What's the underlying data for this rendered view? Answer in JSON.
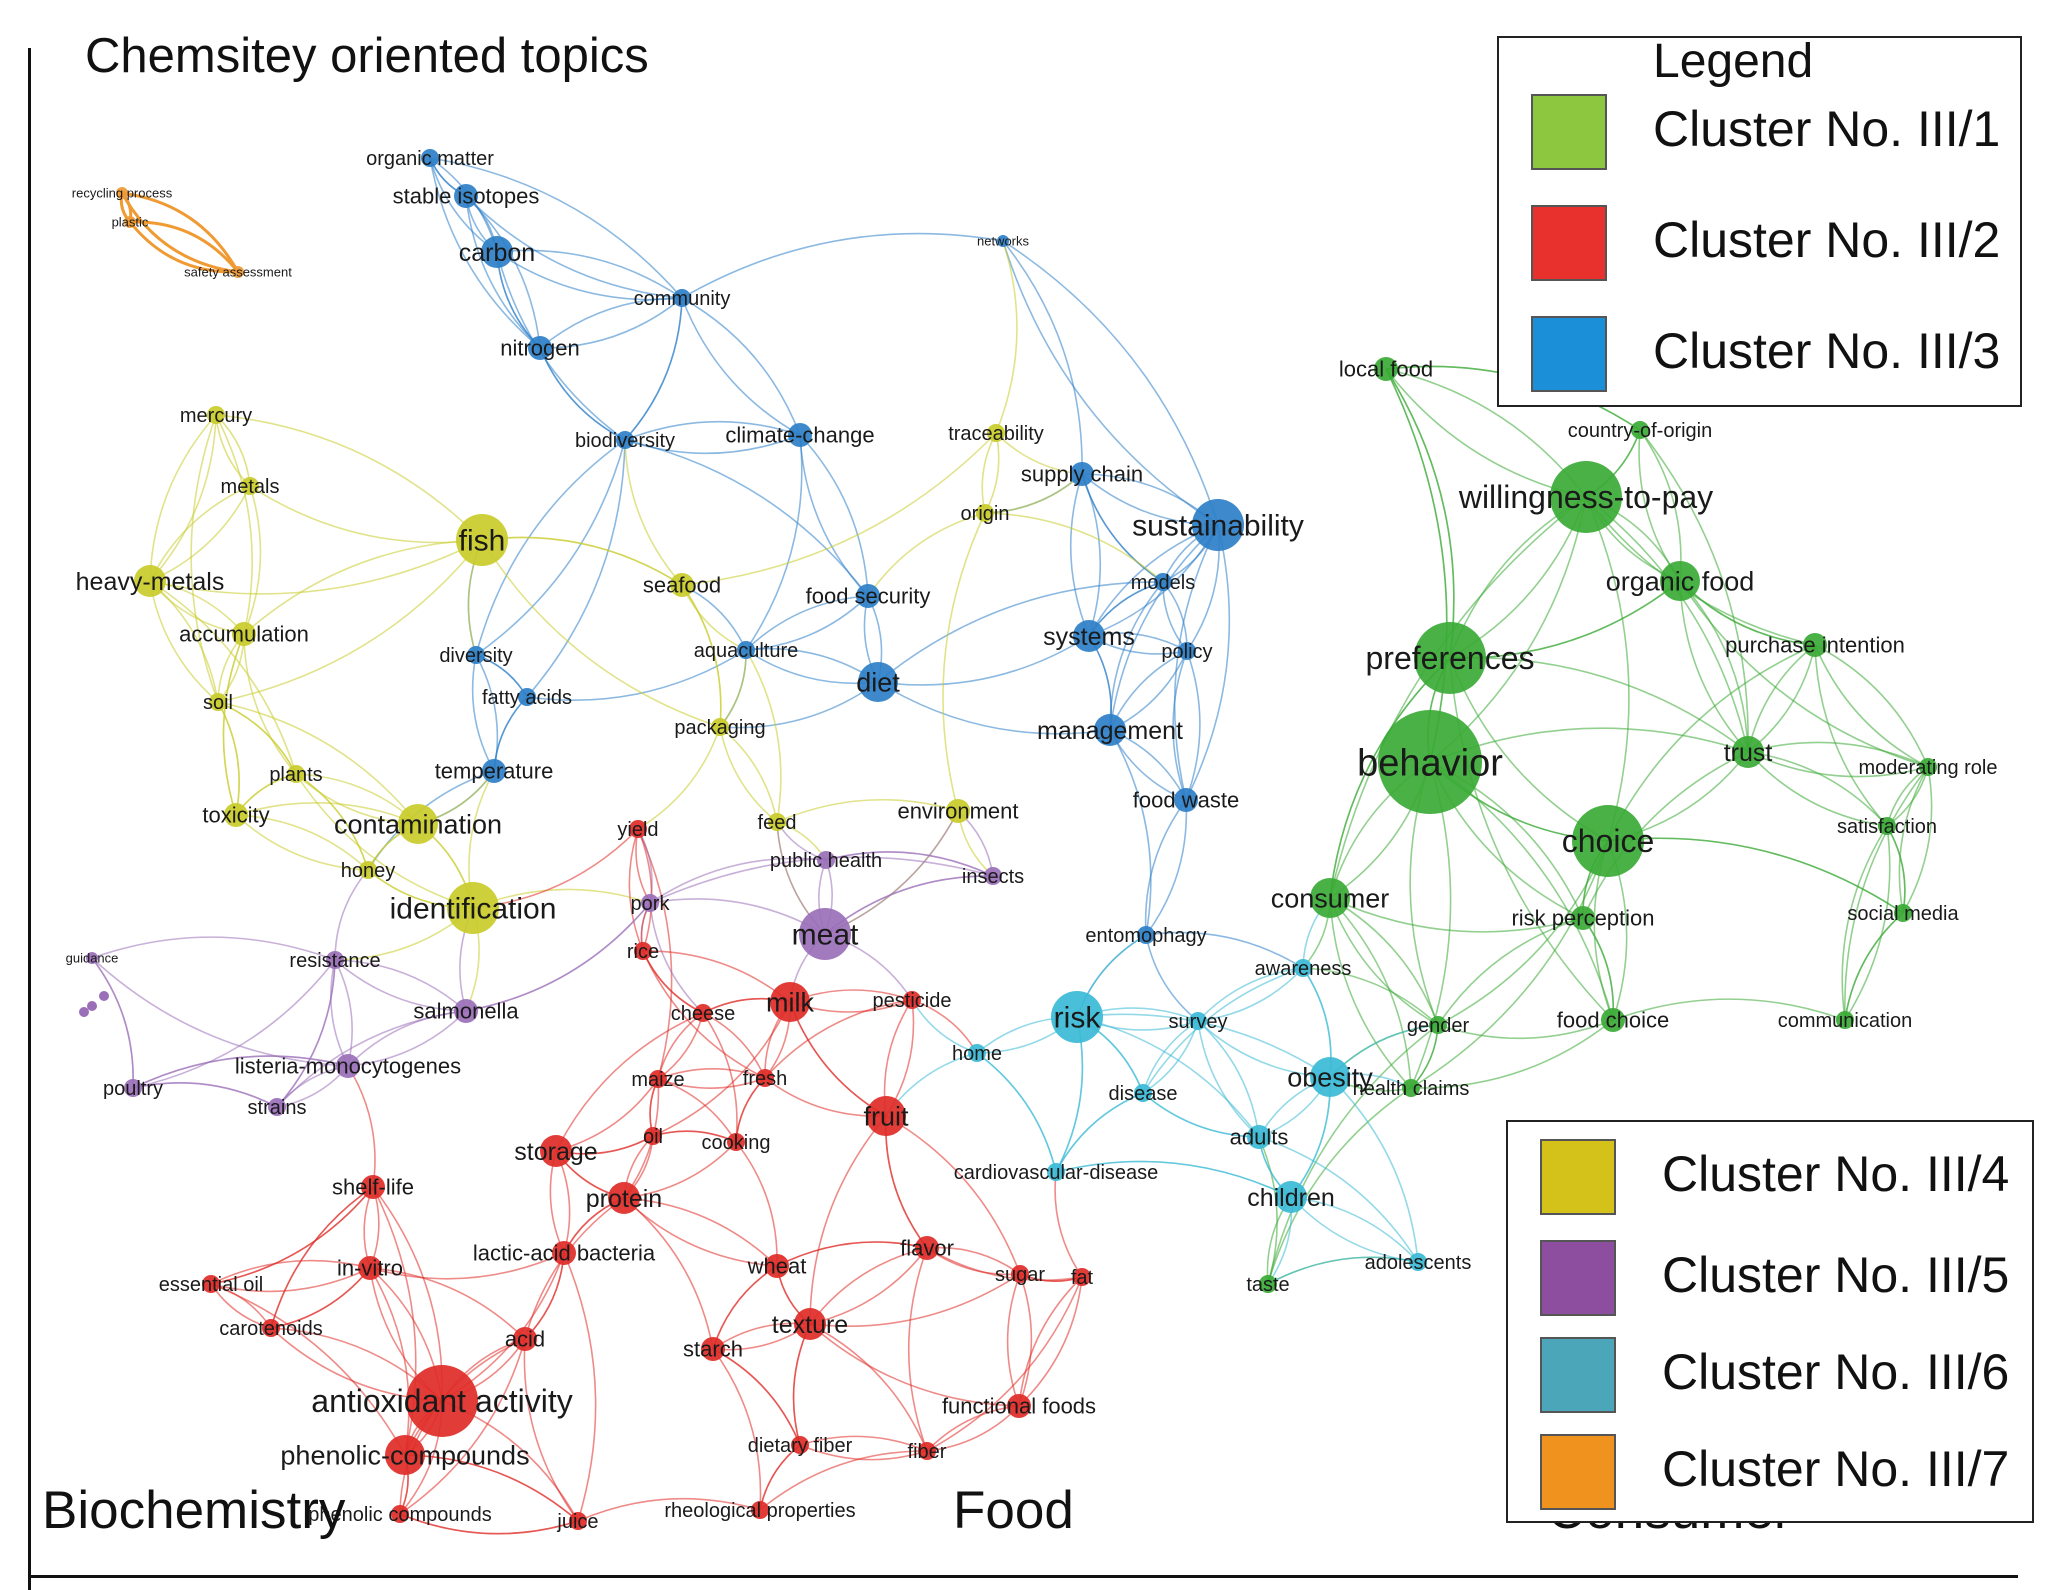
{
  "title": "Chemsitey oriented topics",
  "corner_labels": [
    "Biochemistry",
    "Food",
    "Consumer"
  ],
  "legend": {
    "title": "Legend",
    "clusters": [
      {
        "label": "Cluster No. III/1",
        "color": "#8dc63f"
      },
      {
        "label": "Cluster No. III/2",
        "color": "#e8312c"
      },
      {
        "label": "Cluster No. III/3",
        "color": "#1b8fd8"
      },
      {
        "label": "Cluster No. III/4",
        "color": "#d4c11a"
      },
      {
        "label": "Cluster No. III/5",
        "color": "#8e4ea0"
      },
      {
        "label": "Cluster No. III/6",
        "color": "#4aa6b8"
      },
      {
        "label": "Cluster No. III/7",
        "color": "#f0921e"
      }
    ]
  },
  "colors": {
    "green": "#3aaa35",
    "red": "#e02b27",
    "blue": "#2d7fc8",
    "yellow": "#c9cc2a",
    "purple": "#9a6fb8",
    "cyan": "#3bbad6",
    "orange": "#ef9a32"
  },
  "network": {
    "nodes": [
      {
        "label": "recycling process",
        "cluster": "orange",
        "weight": 1
      },
      {
        "label": "plastic",
        "cluster": "orange",
        "weight": 1
      },
      {
        "label": "safety assessment",
        "cluster": "orange",
        "weight": 1
      },
      {
        "label": "organic matter",
        "cluster": "blue",
        "weight": 2
      },
      {
        "label": "stable isotopes",
        "cluster": "blue",
        "weight": 3
      },
      {
        "label": "carbon",
        "cluster": "blue",
        "weight": 4
      },
      {
        "label": "community",
        "cluster": "blue",
        "weight": 2
      },
      {
        "label": "nitrogen",
        "cluster": "blue",
        "weight": 3
      },
      {
        "label": "networks",
        "cluster": "blue",
        "weight": 1
      },
      {
        "label": "biodiversity",
        "cluster": "blue",
        "weight": 2
      },
      {
        "label": "climate-change",
        "cluster": "blue",
        "weight": 3
      },
      {
        "label": "supply chain",
        "cluster": "blue",
        "weight": 3
      },
      {
        "label": "sustainability",
        "cluster": "blue",
        "weight": 6
      },
      {
        "label": "food security",
        "cluster": "blue",
        "weight": 3
      },
      {
        "label": "models",
        "cluster": "blue",
        "weight": 2
      },
      {
        "label": "systems",
        "cluster": "blue",
        "weight": 4
      },
      {
        "label": "policy",
        "cluster": "blue",
        "weight": 2
      },
      {
        "label": "diet",
        "cluster": "blue",
        "weight": 5
      },
      {
        "label": "diversity",
        "cluster": "blue",
        "weight": 2
      },
      {
        "label": "fatty acids",
        "cluster": "blue",
        "weight": 2
      },
      {
        "label": "aquaculture",
        "cluster": "blue",
        "weight": 2
      },
      {
        "label": "temperature",
        "cluster": "blue",
        "weight": 3
      },
      {
        "label": "food waste",
        "cluster": "blue",
        "weight": 3
      },
      {
        "label": "management",
        "cluster": "blue",
        "weight": 4
      },
      {
        "label": "local food",
        "cluster": "green",
        "weight": 3
      },
      {
        "label": "country-of-origin",
        "cluster": "green",
        "weight": 2
      },
      {
        "label": "willingness-to-pay",
        "cluster": "green",
        "weight": 7
      },
      {
        "label": "organic food",
        "cluster": "green",
        "weight": 5
      },
      {
        "label": "purchase intention",
        "cluster": "green",
        "weight": 3
      },
      {
        "label": "preferences",
        "cluster": "green",
        "weight": 7
      },
      {
        "label": "behavior",
        "cluster": "green",
        "weight": 10
      },
      {
        "label": "trust",
        "cluster": "green",
        "weight": 4
      },
      {
        "label": "moderating role",
        "cluster": "green",
        "weight": 2
      },
      {
        "label": "choice",
        "cluster": "green",
        "weight": 8
      },
      {
        "label": "satisfaction",
        "cluster": "green",
        "weight": 2
      },
      {
        "label": "consumer",
        "cluster": "green",
        "weight": 5
      },
      {
        "label": "risk perception",
        "cluster": "green",
        "weight": 3
      },
      {
        "label": "social media",
        "cluster": "green",
        "weight": 2
      },
      {
        "label": "food choice",
        "cluster": "green",
        "weight": 3
      },
      {
        "label": "gender",
        "cluster": "green",
        "weight": 2
      },
      {
        "label": "communication",
        "cluster": "green",
        "weight": 2
      },
      {
        "label": "health claims",
        "cluster": "green",
        "weight": 2
      },
      {
        "label": "taste",
        "cluster": "green",
        "weight": 2
      },
      {
        "label": "traceability",
        "cluster": "yellow",
        "weight": 2
      },
      {
        "label": "origin",
        "cluster": "yellow",
        "weight": 2
      },
      {
        "label": "mercury",
        "cluster": "yellow",
        "weight": 2
      },
      {
        "label": "metals",
        "cluster": "yellow",
        "weight": 2
      },
      {
        "label": "heavy-metals",
        "cluster": "yellow",
        "weight": 4
      },
      {
        "label": "accumulation",
        "cluster": "yellow",
        "weight": 3
      },
      {
        "label": "fish",
        "cluster": "yellow",
        "weight": 6
      },
      {
        "label": "seafood",
        "cluster": "yellow",
        "weight": 3
      },
      {
        "label": "soil",
        "cluster": "yellow",
        "weight": 2
      },
      {
        "label": "plants",
        "cluster": "yellow",
        "weight": 2
      },
      {
        "label": "toxicity",
        "cluster": "yellow",
        "weight": 3
      },
      {
        "label": "contamination",
        "cluster": "yellow",
        "weight": 5
      },
      {
        "label": "honey",
        "cluster": "yellow",
        "weight": 2
      },
      {
        "label": "identification",
        "cluster": "yellow",
        "weight": 6
      },
      {
        "label": "packaging",
        "cluster": "yellow",
        "weight": 2
      },
      {
        "label": "feed",
        "cluster": "yellow",
        "weight": 2
      },
      {
        "label": "environment",
        "cluster": "yellow",
        "weight": 3
      },
      {
        "label": "yield",
        "cluster": "red",
        "weight": 2
      },
      {
        "label": "public health",
        "cluster": "purple",
        "weight": 2
      },
      {
        "label": "insects",
        "cluster": "purple",
        "weight": 2
      },
      {
        "label": "pork",
        "cluster": "purple",
        "weight": 2
      },
      {
        "label": "meat",
        "cluster": "purple",
        "weight": 6
      },
      {
        "label": "entomophagy",
        "cluster": "blue",
        "weight": 2
      },
      {
        "label": "guidance",
        "cluster": "purple",
        "weight": 1
      },
      {
        "label": "resistance",
        "cluster": "purple",
        "weight": 2
      },
      {
        "label": "salmonella",
        "cluster": "purple",
        "weight": 3
      },
      {
        "label": "listeria-monocytogenes",
        "cluster": "purple",
        "weight": 3
      },
      {
        "label": "poultry",
        "cluster": "purple",
        "weight": 2
      },
      {
        "label": "strains",
        "cluster": "purple",
        "weight": 2
      },
      {
        "label": "rice",
        "cluster": "red",
        "weight": 2
      },
      {
        "label": "cheese",
        "cluster": "red",
        "weight": 2
      },
      {
        "label": "milk",
        "cluster": "red",
        "weight": 5
      },
      {
        "label": "pesticide",
        "cluster": "red",
        "weight": 2
      },
      {
        "label": "awareness",
        "cluster": "cyan",
        "weight": 2
      },
      {
        "label": "risk",
        "cluster": "cyan",
        "weight": 6
      },
      {
        "label": "survey",
        "cluster": "cyan",
        "weight": 2
      },
      {
        "label": "home",
        "cluster": "cyan",
        "weight": 2
      },
      {
        "label": "maize",
        "cluster": "red",
        "weight": 2
      },
      {
        "label": "fresh",
        "cluster": "red",
        "weight": 2
      },
      {
        "label": "obesity",
        "cluster": "cyan",
        "weight": 5
      },
      {
        "label": "disease",
        "cluster": "cyan",
        "weight": 2
      },
      {
        "label": "fruit",
        "cluster": "red",
        "weight": 5
      },
      {
        "label": "adults",
        "cluster": "cyan",
        "weight": 3
      },
      {
        "label": "storage",
        "cluster": "red",
        "weight": 4
      },
      {
        "label": "oil",
        "cluster": "red",
        "weight": 2
      },
      {
        "label": "cooking",
        "cluster": "red",
        "weight": 2
      },
      {
        "label": "cardiovascular-disease",
        "cluster": "cyan",
        "weight": 2
      },
      {
        "label": "children",
        "cluster": "cyan",
        "weight": 4
      },
      {
        "label": "shelf-life",
        "cluster": "red",
        "weight": 3
      },
      {
        "label": "protein",
        "cluster": "red",
        "weight": 4
      },
      {
        "label": "adolescents",
        "cluster": "cyan",
        "weight": 2
      },
      {
        "label": "lactic-acid bacteria",
        "cluster": "red",
        "weight": 3
      },
      {
        "label": "flavor",
        "cluster": "red",
        "weight": 3
      },
      {
        "label": "in-vitro",
        "cluster": "red",
        "weight": 3
      },
      {
        "label": "wheat",
        "cluster": "red",
        "weight": 3
      },
      {
        "label": "sugar",
        "cluster": "red",
        "weight": 2
      },
      {
        "label": "fat",
        "cluster": "red",
        "weight": 2
      },
      {
        "label": "essential oil",
        "cluster": "red",
        "weight": 2
      },
      {
        "label": "texture",
        "cluster": "red",
        "weight": 4
      },
      {
        "label": "carotenoids",
        "cluster": "red",
        "weight": 2
      },
      {
        "label": "acid",
        "cluster": "red",
        "weight": 3
      },
      {
        "label": "starch",
        "cluster": "red",
        "weight": 3
      },
      {
        "label": "antioxidant activity",
        "cluster": "red",
        "weight": 7
      },
      {
        "label": "functional foods",
        "cluster": "red",
        "weight": 3
      },
      {
        "label": "phenolic-compounds",
        "cluster": "red",
        "weight": 5
      },
      {
        "label": "dietary fiber",
        "cluster": "red",
        "weight": 2
      },
      {
        "label": "fiber",
        "cluster": "red",
        "weight": 2
      },
      {
        "label": "phenolic compounds",
        "cluster": "red",
        "weight": 2
      },
      {
        "label": "juice",
        "cluster": "red",
        "weight": 2
      },
      {
        "label": "rheological properties",
        "cluster": "red",
        "weight": 2
      }
    ]
  }
}
